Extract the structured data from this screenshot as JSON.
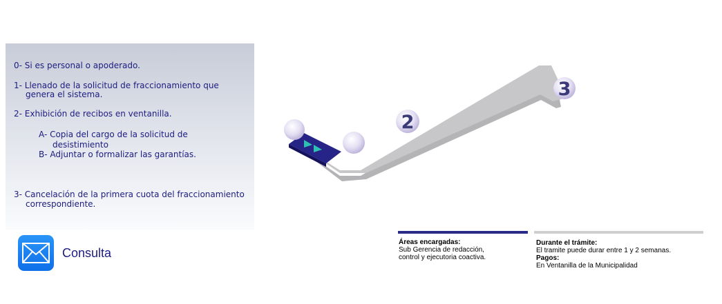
{
  "steps": [
    "0- Si es personal o apoderado.",
    "1- Llenado de la solicitud de fraccionamiento que",
    "genera el sistema.",
    "2- Exhibición de recibos en ventanilla.",
    "A- Copia del cargo de la solicitud de",
    "desistimiento",
    "B- Adjuntar o formalizar las garantías.",
    "3- Cancelación de la primera cuota del fraccionamiento",
    "correspondiente."
  ],
  "consulta": {
    "label": "Consulta",
    "icon": "mail-icon"
  },
  "diagram": {
    "labels": [
      "2",
      "3"
    ]
  },
  "areas": {
    "title": "Áreas encargadas:",
    "lines": [
      "Sub Gerencia de redacción,",
      "control y ejecutoria coactiva."
    ]
  },
  "durante": {
    "title": "Durante el trámite:",
    "text": "El tramite puede durar entre 1 y 2 semanas.",
    "pagos_title": "Pagos:",
    "pagos_text": "En Ventanilla de la Municipalidad"
  },
  "colors": {
    "text": "#1c1c80",
    "accent_bar": "#2a2a88",
    "gray_bar": "#cfcfcf",
    "path": "#c7c7c9",
    "teal": "#2fc0b4",
    "start_block": "#262487"
  }
}
